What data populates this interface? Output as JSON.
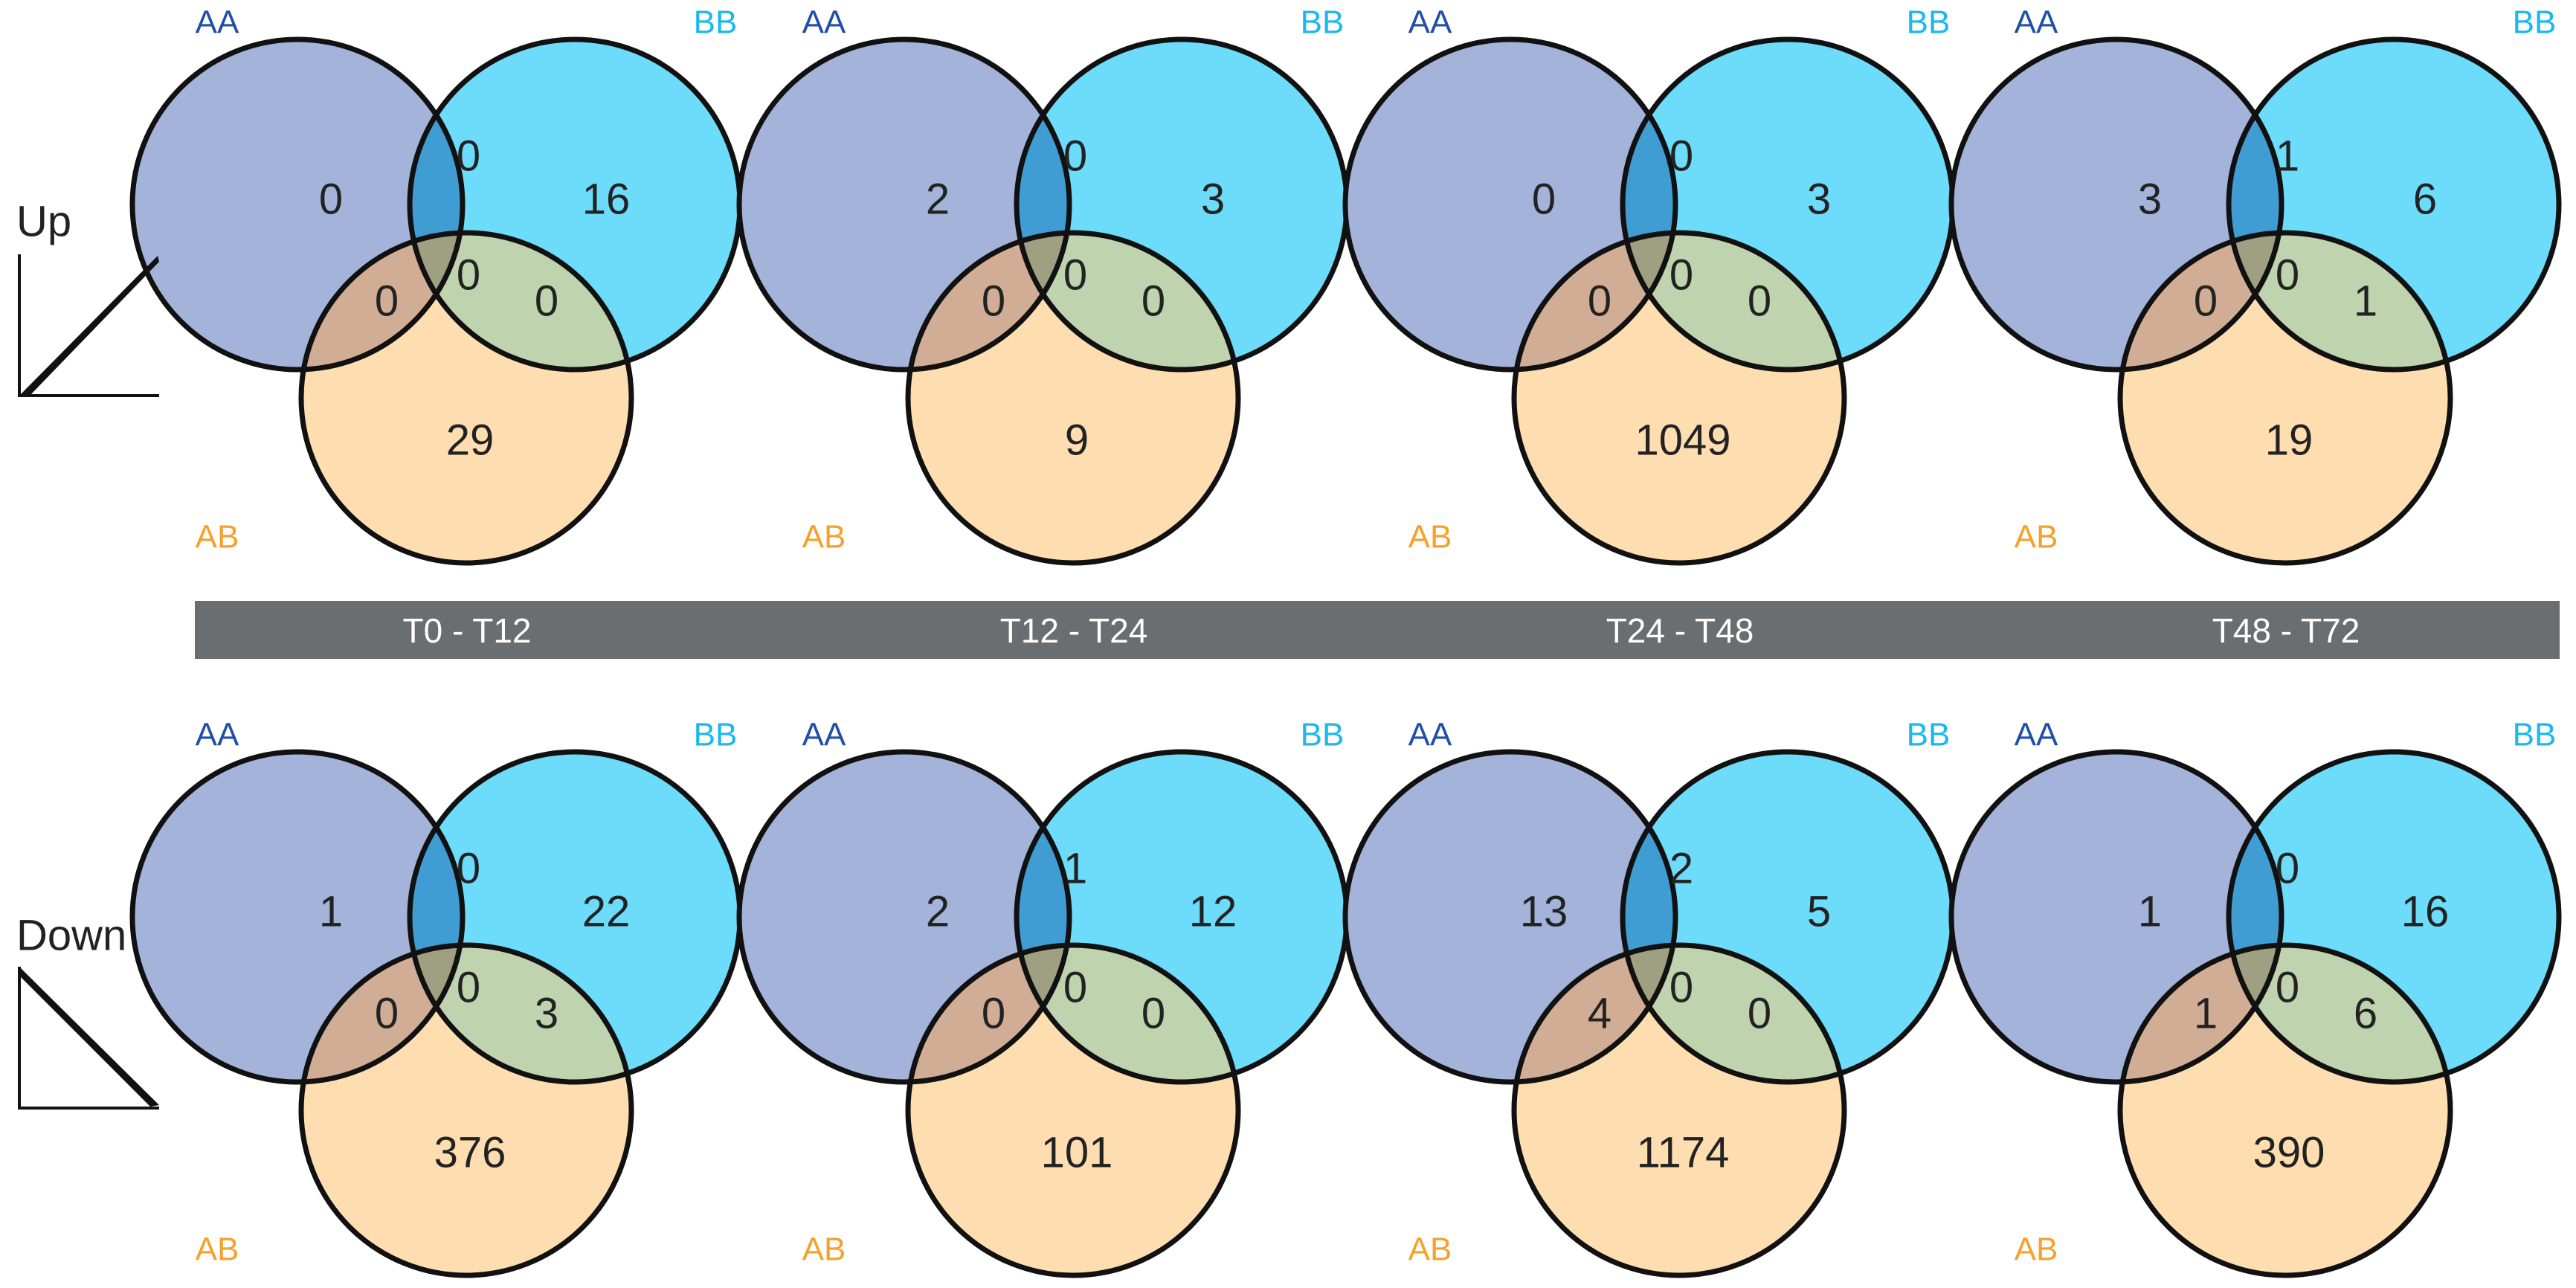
{
  "colors": {
    "aa": "#1f4fa8",
    "bb": "#1ab8ec",
    "ab": "#f6a12a",
    "aa_fill": "#a3b3d9",
    "bb_fill": "#6cdcfa",
    "ab_fill": "#fedeb0",
    "aa_bb": "#409dd4",
    "aa_ab": "#d2ad95",
    "bb_ab": "#c0d3af",
    "all": "#9f9f82",
    "bar": "#6b6e70",
    "bar_text": "#ffffff",
    "outline": "#111111"
  },
  "set_labels": {
    "aa": "AA",
    "bb": "BB",
    "ab": "AB"
  },
  "rows": [
    {
      "label": "Up",
      "icon": "up-trend-icon"
    },
    {
      "label": "Down",
      "icon": "down-trend-icon"
    }
  ],
  "periods": [
    "T0 - T12",
    "T12 - T24",
    "T24 - T48",
    "T48 - T72"
  ],
  "venns": [
    [
      {
        "aa": "0",
        "bb": "16",
        "ab": "29",
        "aa_bb": "0",
        "aa_ab": "0",
        "bb_ab": "0",
        "all": "0"
      },
      {
        "aa": "2",
        "bb": "3",
        "ab": "9",
        "aa_bb": "0",
        "aa_ab": "0",
        "bb_ab": "0",
        "all": "0"
      },
      {
        "aa": "0",
        "bb": "3",
        "ab": "1049",
        "aa_bb": "0",
        "aa_ab": "0",
        "bb_ab": "0",
        "all": "0"
      },
      {
        "aa": "3",
        "bb": "6",
        "ab": "19",
        "aa_bb": "1",
        "aa_ab": "0",
        "bb_ab": "1",
        "all": "0"
      }
    ],
    [
      {
        "aa": "1",
        "bb": "22",
        "ab": "376",
        "aa_bb": "0",
        "aa_ab": "0",
        "bb_ab": "3",
        "all": "0"
      },
      {
        "aa": "2",
        "bb": "12",
        "ab": "101",
        "aa_bb": "1",
        "aa_ab": "0",
        "bb_ab": "0",
        "all": "0"
      },
      {
        "aa": "13",
        "bb": "5",
        "ab": "1174",
        "aa_bb": "2",
        "aa_ab": "4",
        "bb_ab": "0",
        "all": "0"
      },
      {
        "aa": "1",
        "bb": "16",
        "ab": "390",
        "aa_bb": "0",
        "aa_ab": "1",
        "bb_ab": "6",
        "all": "0"
      }
    ]
  ]
}
